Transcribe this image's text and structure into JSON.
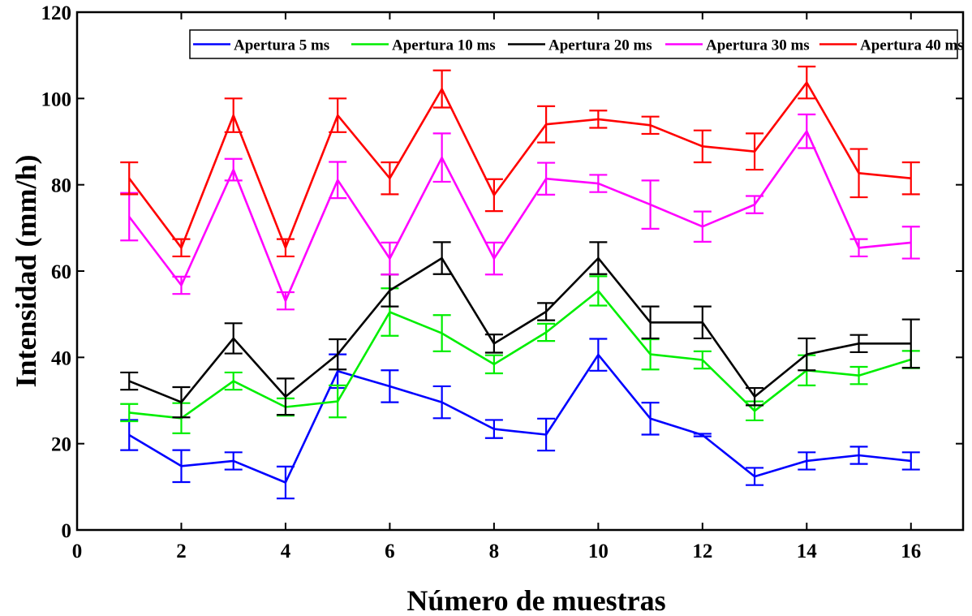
{
  "chart_data": {
    "type": "line",
    "title": "",
    "xlabel": "Número de muestras",
    "ylabel": "Intensidad (mm/h)",
    "xlim": [
      0,
      17
    ],
    "ylim": [
      0,
      120
    ],
    "xticks": [
      0,
      2,
      4,
      6,
      8,
      10,
      12,
      14,
      16
    ],
    "yticks": [
      0,
      20,
      40,
      60,
      80,
      100,
      120
    ],
    "grid": false,
    "error_bars": true,
    "legend_position": "top-right",
    "x": [
      1,
      2,
      3,
      4,
      5,
      6,
      7,
      8,
      9,
      10,
      11,
      12,
      13,
      14,
      15,
      16
    ],
    "series": [
      {
        "name": "Apertura 5 ms",
        "color": "#0000ff",
        "values": [
          22.0,
          14.8,
          16.0,
          11.0,
          36.8,
          33.3,
          29.6,
          23.4,
          22.1,
          40.6,
          25.8,
          22.0,
          12.4,
          16.0,
          17.3,
          16.0
        ],
        "errors": [
          3.5,
          3.7,
          2.0,
          3.7,
          3.9,
          3.7,
          3.7,
          2.1,
          3.7,
          3.7,
          3.7,
          0.3,
          2.0,
          2.0,
          2.0,
          2.0
        ]
      },
      {
        "name": "Apertura 10 ms",
        "color": "#00ee00",
        "values": [
          27.2,
          25.9,
          34.5,
          28.5,
          29.8,
          50.5,
          45.6,
          38.4,
          45.8,
          55.4,
          40.7,
          39.4,
          27.6,
          37.0,
          35.8,
          39.5
        ],
        "errors": [
          2.0,
          3.5,
          2.0,
          2.0,
          3.7,
          5.5,
          4.2,
          2.1,
          2.0,
          3.4,
          3.5,
          2.0,
          2.2,
          3.5,
          2.0,
          2.0
        ]
      },
      {
        "name": "Apertura 20 ms",
        "color": "#000000",
        "values": [
          34.5,
          29.6,
          44.4,
          30.9,
          40.7,
          55.5,
          63.0,
          43.2,
          50.6,
          63.0,
          48.1,
          48.1,
          30.9,
          40.7,
          43.2,
          43.2
        ],
        "errors": [
          2.0,
          3.5,
          3.5,
          4.2,
          3.5,
          3.7,
          3.7,
          2.1,
          2.0,
          3.7,
          3.7,
          3.7,
          2.0,
          3.7,
          2.0,
          5.6
        ]
      },
      {
        "name": "Apertura 30 ms",
        "color": "#ff00ff",
        "values": [
          72.6,
          56.7,
          83.5,
          53.1,
          81.1,
          62.9,
          86.3,
          62.9,
          81.4,
          80.3,
          75.4,
          70.3,
          75.4,
          92.4,
          65.4,
          66.6
        ],
        "errors": [
          5.5,
          2.0,
          2.5,
          2.0,
          4.2,
          3.7,
          5.6,
          3.7,
          3.7,
          2.0,
          5.6,
          3.5,
          2.0,
          3.9,
          2.0,
          3.7
        ]
      },
      {
        "name": "Apertura 40 ms",
        "color": "#ff0000",
        "values": [
          81.5,
          65.4,
          96.1,
          65.4,
          96.1,
          81.5,
          102.2,
          77.6,
          94.0,
          95.2,
          93.8,
          88.9,
          87.7,
          103.7,
          82.7,
          81.5
        ],
        "errors": [
          3.7,
          2.0,
          3.9,
          2.0,
          3.9,
          3.7,
          4.3,
          3.7,
          4.2,
          2.0,
          2.0,
          3.7,
          4.2,
          3.7,
          5.6,
          3.7
        ]
      }
    ]
  }
}
